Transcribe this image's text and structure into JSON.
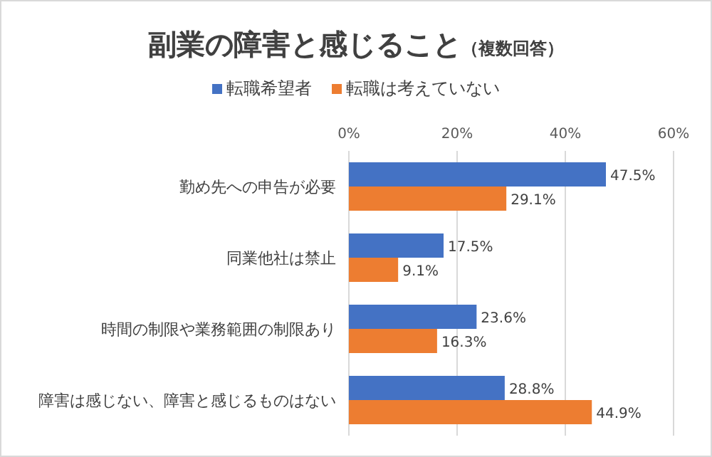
{
  "chart_data": {
    "type": "bar",
    "orientation": "horizontal",
    "title": "副業の障害と感じること",
    "subtitle": "（複数回答）",
    "categories": [
      "勤め先への申告が必要",
      "同業他社は禁止",
      "時間の制限や業務範囲の制限あり",
      "障害は感じない、障害と感じるものはない"
    ],
    "series": [
      {
        "name": "転職希望者",
        "color": "#4472c4",
        "values": [
          47.5,
          17.5,
          23.6,
          28.8
        ],
        "value_labels": [
          "47.5%",
          "17.5%",
          "23.6%",
          "28.8%"
        ]
      },
      {
        "name": "転職は考えていない",
        "color": "#ed7d31",
        "values": [
          29.1,
          9.1,
          16.3,
          44.9
        ],
        "value_labels": [
          "29.1%",
          "9.1%",
          "16.3%",
          "44.9%"
        ]
      }
    ],
    "xlim": [
      0,
      60
    ],
    "xticks": [
      {
        "value": 0,
        "label": "0%"
      },
      {
        "value": 20,
        "label": "20%"
      },
      {
        "value": 40,
        "label": "40%"
      },
      {
        "value": 60,
        "label": "60%"
      }
    ],
    "grid": "x",
    "legend": "top"
  }
}
